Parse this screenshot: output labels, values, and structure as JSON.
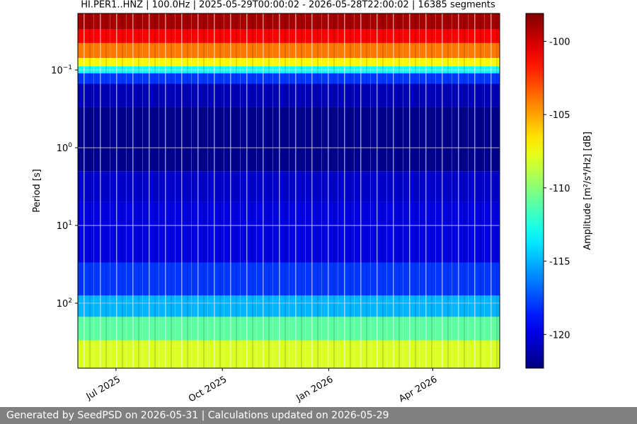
{
  "chart_data": {
    "type": "spectrogram",
    "title": "HI.PER1..HNZ | 100.0Hz | 2025-05-29T00:00:02 - 2026-05-28T22:00:02 | 16385 segments",
    "y_label": "Period [s]",
    "log_y": true,
    "grid": true,
    "xlim": [
      "2025-05-29T00:00:02",
      "2026-05-28T22:00:02"
    ],
    "xticks": [
      {
        "value": "2025-07-01",
        "label": "Jul 2025"
      },
      {
        "value": "2025-10-01",
        "label": "Oct 2025"
      },
      {
        "value": "2026-01-01",
        "label": "Jan 2026"
      },
      {
        "value": "2026-04-01",
        "label": "Apr 2026"
      }
    ],
    "ylim": [
      686,
      0.0187
    ],
    "yticks": [
      {
        "value": 0.1,
        "label": "10",
        "exponent": "−1"
      },
      {
        "value": 1,
        "label": "10",
        "exponent": "0"
      },
      {
        "value": 10,
        "label": "10",
        "exponent": "1"
      },
      {
        "value": 100,
        "label": "10",
        "exponent": "2"
      }
    ],
    "period_bins": [
      0.0187,
      0.03,
      0.045,
      0.07,
      0.09,
      0.11,
      0.15,
      0.3,
      2,
      5,
      30,
      80,
      150,
      300,
      686
    ],
    "values": [
      -99,
      -101,
      -104,
      -107,
      -113,
      -118,
      -121,
      -122,
      -120.5,
      -120,
      -118,
      -115,
      -111,
      -108
    ],
    "colorbar": {
      "label": "Amplitude [m²/s⁴/Hz] [dB]",
      "clim": [
        -122.3,
        -98.1
      ],
      "ticks": [
        -120,
        -115,
        -110,
        -105,
        -100
      ]
    }
  },
  "footer": "Generated by SeedPSD on 2026-05-31 | Calculations updated on 2026-05-29"
}
